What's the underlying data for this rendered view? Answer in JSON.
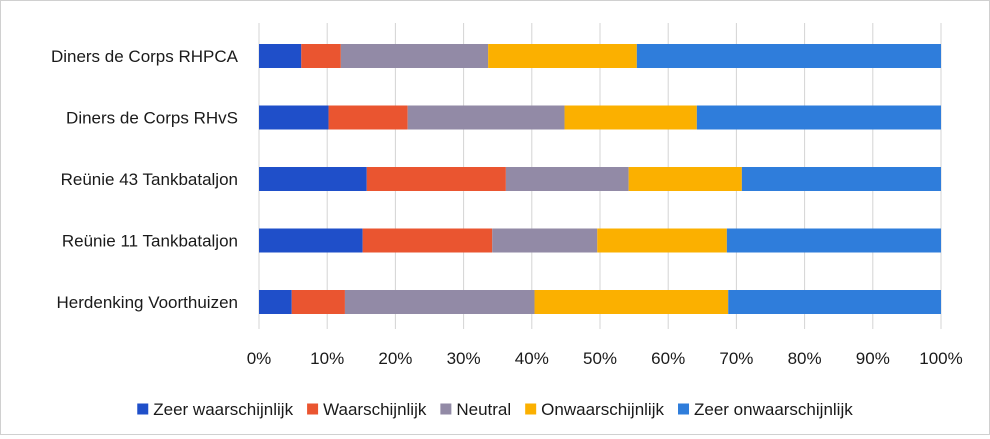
{
  "chart_data": {
    "type": "bar",
    "orientation": "horizontal",
    "stacked": "percent",
    "title": "",
    "xlabel": "",
    "ylabel": "",
    "xlim": [
      0,
      100
    ],
    "grid": true,
    "legend_position": "bottom",
    "categories": [
      "Diners de Corps RHPCA",
      "Diners de Corps RHvS",
      "Reünie 43 Tankbataljon",
      "Reünie 11 Tankbataljon",
      "Herdenking Voorthuizen"
    ],
    "x_ticks": [
      "0%",
      "10%",
      "20%",
      "30%",
      "40%",
      "50%",
      "60%",
      "70%",
      "80%",
      "90%",
      "100%"
    ],
    "series": [
      {
        "name": "Zeer waarschijnlijk",
        "color": "#1f4fc9",
        "values": [
          6.2,
          10.2,
          15.8,
          15.2,
          4.8
        ]
      },
      {
        "name": "Waarschijnlijk",
        "color": "#ea5530",
        "values": [
          5.8,
          11.6,
          20.4,
          19.0,
          7.8
        ]
      },
      {
        "name": "Neutral",
        "color": "#928aa6",
        "values": [
          21.6,
          23.0,
          18.0,
          15.4,
          27.8
        ]
      },
      {
        "name": "Onwaarschijnlijk",
        "color": "#fbb000",
        "values": [
          21.8,
          19.4,
          16.6,
          19.0,
          28.4
        ]
      },
      {
        "name": "Zeer onwaarschijnlijk",
        "color": "#2f7ddb",
        "values": [
          44.6,
          35.8,
          29.2,
          31.4,
          31.2
        ]
      }
    ]
  }
}
